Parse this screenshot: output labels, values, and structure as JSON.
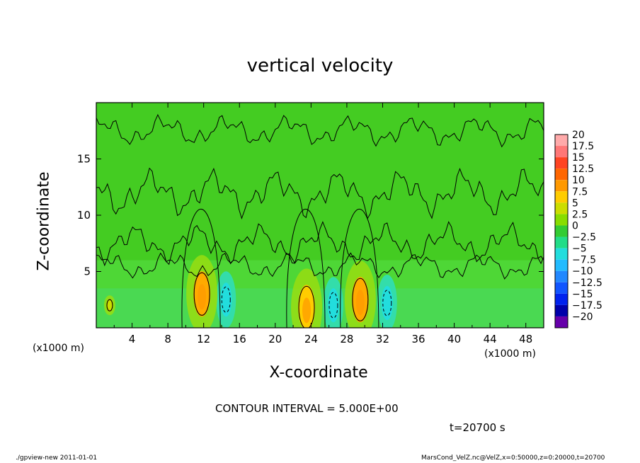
{
  "chart_data": {
    "type": "heatmap",
    "title": "vertical velocity",
    "xlabel": "X-coordinate",
    "ylabel": "Z-coordinate",
    "x_unit": "(x1000 m)",
    "y_unit": "(x1000 m)",
    "xlim": [
      0,
      50
    ],
    "ylim": [
      0,
      20
    ],
    "x_ticks": [
      4,
      8,
      12,
      16,
      20,
      24,
      28,
      32,
      36,
      40,
      44,
      48
    ],
    "y_ticks": [
      5,
      10,
      15
    ],
    "colorbar": {
      "levels": [
        20,
        17.5,
        15,
        12.5,
        10,
        7.5,
        5,
        2.5,
        0,
        -2.5,
        -5,
        -7.5,
        -10,
        -12.5,
        -15,
        -17.5,
        -20
      ],
      "level_labels": [
        "20",
        "17.5",
        "15",
        "12.5",
        "10",
        "7.5",
        "5",
        "2.5",
        "0",
        "−2.5",
        "−5",
        "−7.5",
        "−10",
        "−12.5",
        "−15",
        "−17.5",
        "−20"
      ],
      "colors": [
        "#ffaaaa",
        "#ff7777",
        "#ff4422",
        "#ff6600",
        "#ff9900",
        "#ffcc00",
        "#ccdd00",
        "#88dd00",
        "#33cc33",
        "#22dd88",
        "#22dddd",
        "#22bbff",
        "#2288ff",
        "#1155ff",
        "#0022ee",
        "#0000aa",
        "#6600aa"
      ]
    },
    "updrafts": [
      {
        "x": 11.8,
        "z": 3.0,
        "peak": 10
      },
      {
        "x": 23.5,
        "z": 1.8,
        "peak": 7.5
      },
      {
        "x": 29.5,
        "z": 2.5,
        "peak": 10
      },
      {
        "x": 1.5,
        "z": 2.0,
        "peak": 5
      }
    ],
    "downdrafts": [
      {
        "x": 14.5,
        "z": 2.5,
        "peak": -5
      },
      {
        "x": 26.5,
        "z": 2.0,
        "peak": -5
      },
      {
        "x": 32.5,
        "z": 2.2,
        "peak": -5
      }
    ]
  },
  "labels": {
    "contour_interval": "CONTOUR INTERVAL = 5.000E+00",
    "time": "t=20700 s",
    "footer_left": "./gpview-new   2011-01-01",
    "footer_right": "MarsCond_VelZ.nc@VelZ,x=0:50000,z=0:20000,t=20700"
  }
}
